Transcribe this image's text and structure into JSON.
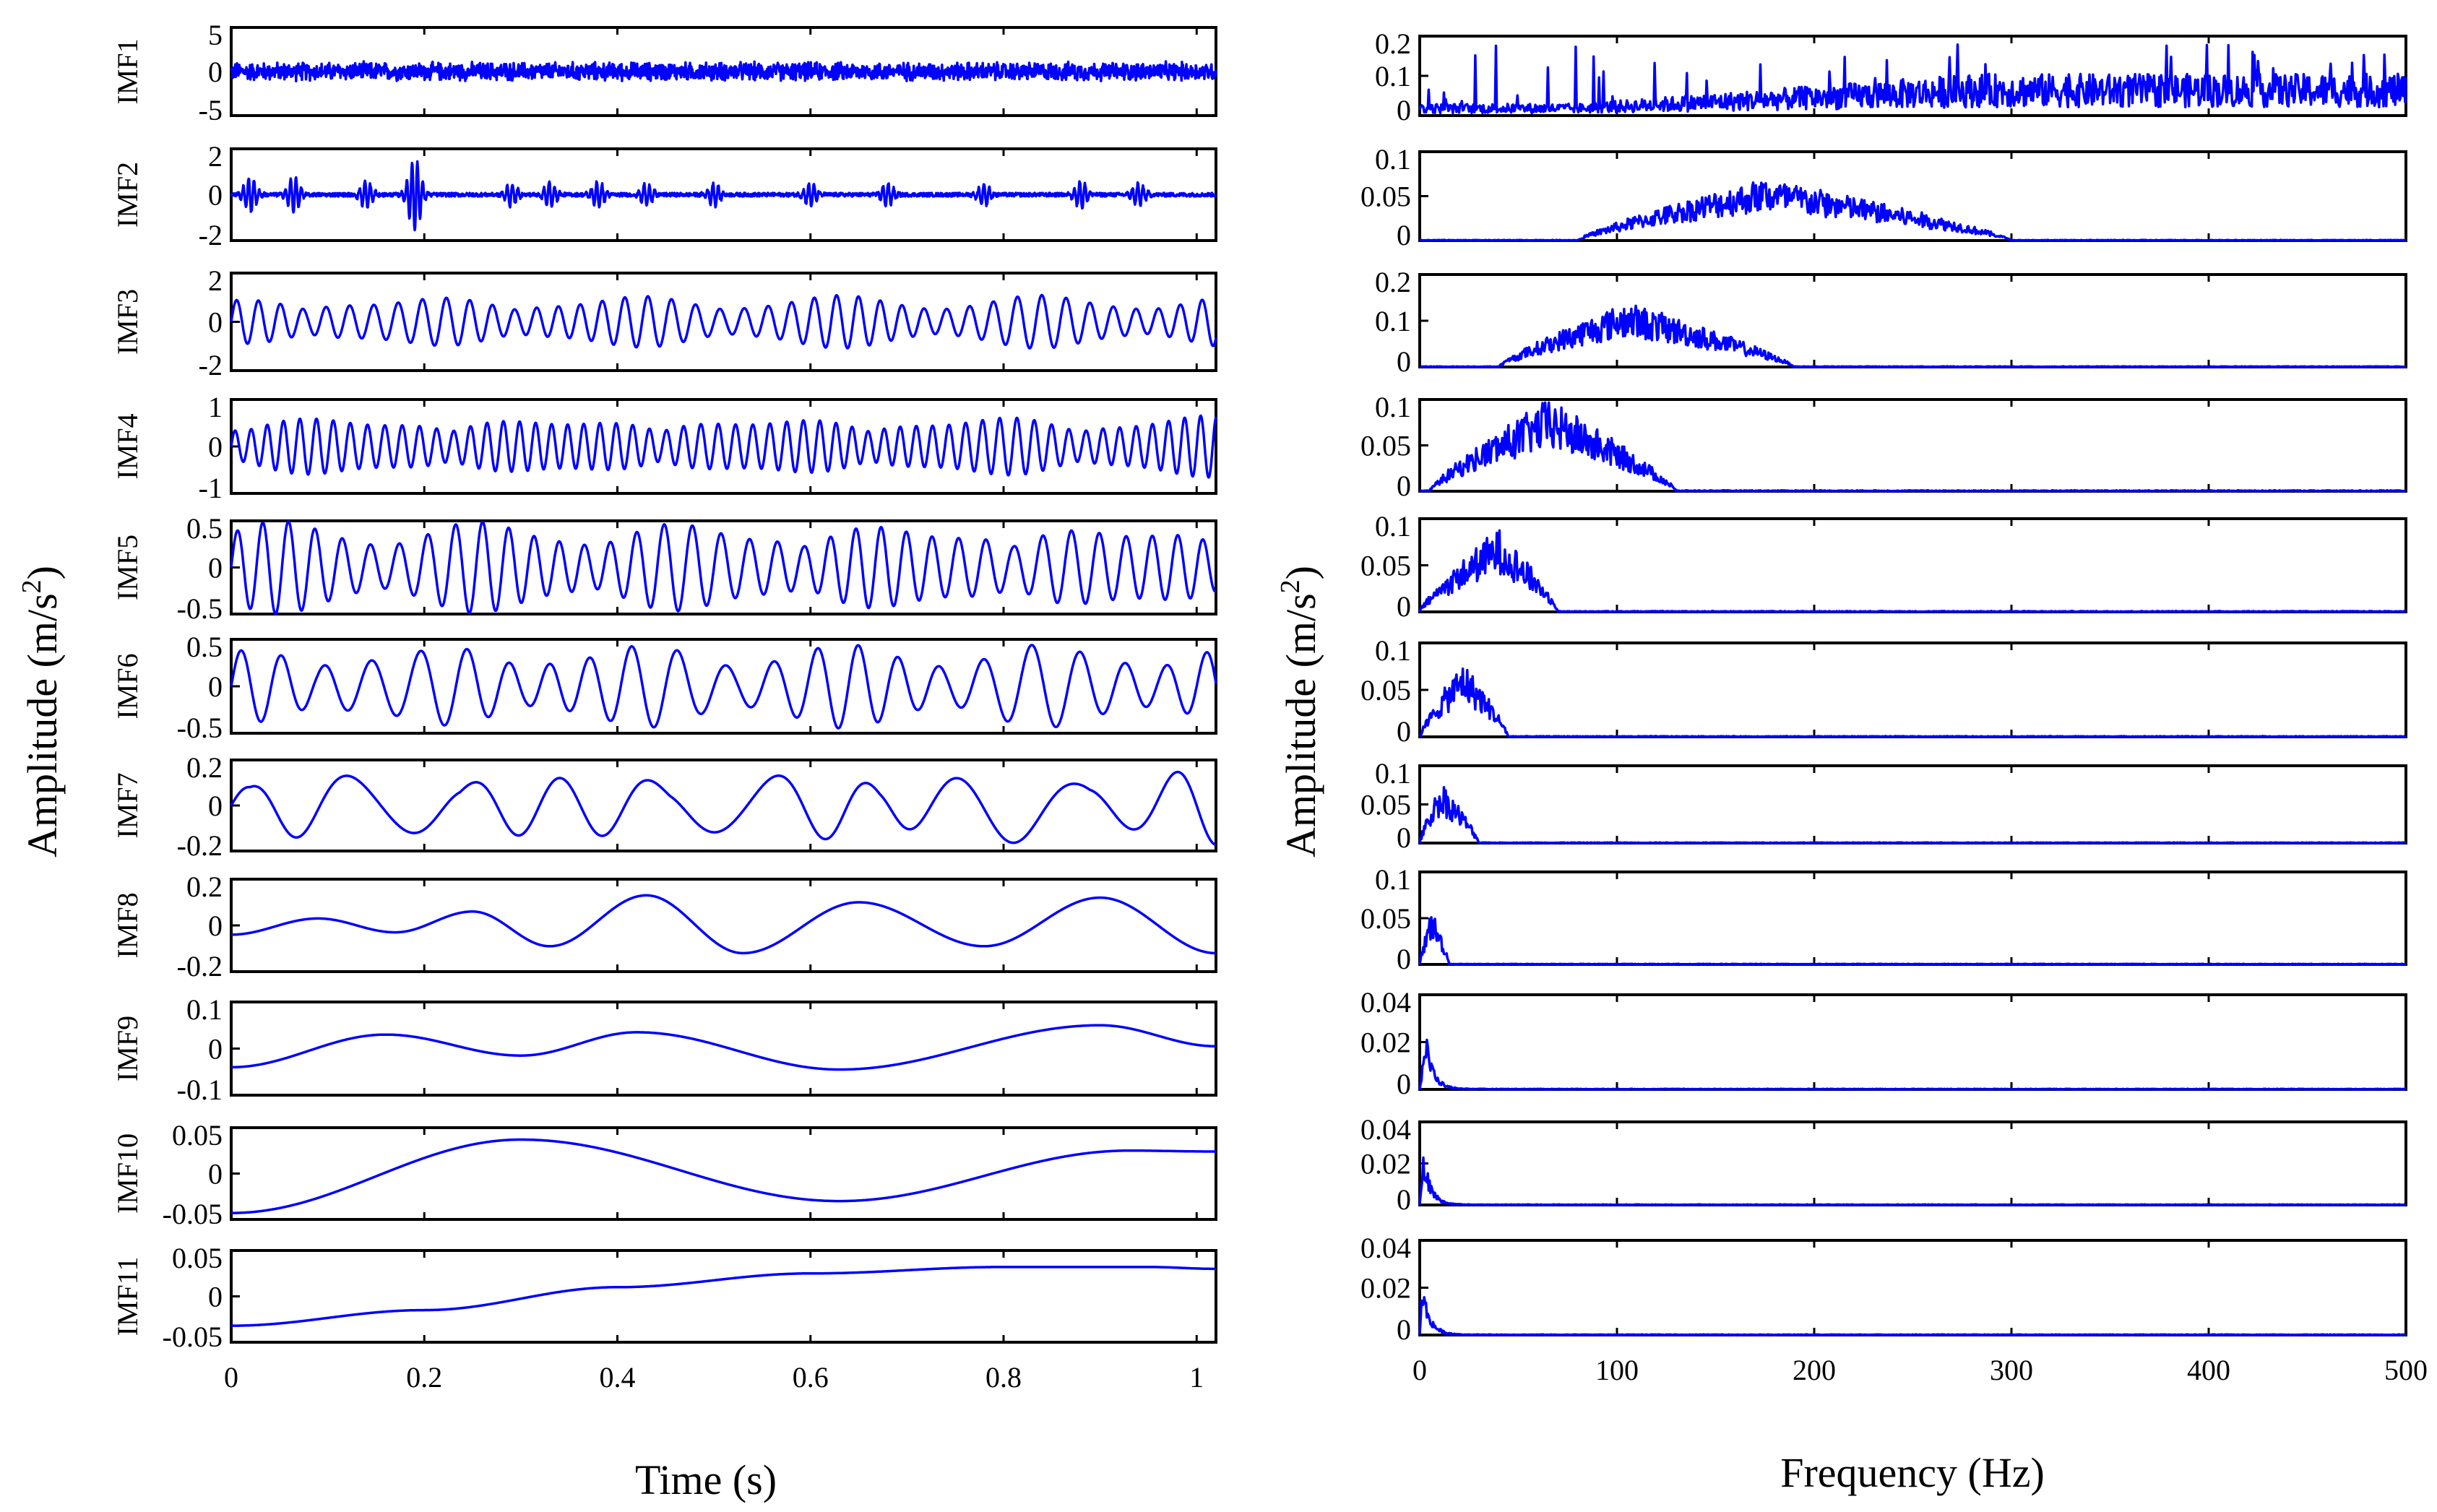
{
  "chart_data": [
    {
      "type": "line",
      "panel": "left",
      "title": "",
      "xlabel": "Time (s)",
      "ylabel": "Amplitude (m/s²)",
      "ylabel_text": "Amplitude (m/s",
      "ylabel_sup": "2",
      "ylabel_close": ")",
      "xlim": [
        0,
        1.02
      ],
      "xticks": [
        0,
        0.2,
        0.4,
        0.6,
        0.8,
        1
      ],
      "xtick_labels": [
        "0",
        "0.2",
        "0.4",
        "0.6",
        "0.8",
        "1"
      ],
      "line_color": "#0000ff",
      "series": [
        {
          "name": "IMF1",
          "ylim": [
            -5,
            5
          ],
          "yticks": [
            -5,
            0,
            5
          ],
          "ytick_labels": [
            "-5",
            "0",
            "5"
          ],
          "amplitude_range": [
            -1.2,
            1.2
          ],
          "shape": "broadband noise, 0–1.02 s"
        },
        {
          "name": "IMF2",
          "ylim": [
            -2,
            2
          ],
          "yticks": [
            -2,
            0,
            2
          ],
          "ytick_labels": [
            "-2",
            "0",
            "2"
          ],
          "amplitude_range": [
            -1.3,
            1.3
          ],
          "shape": "impulsive bursts",
          "burst_times": [
            0.02,
            0.065,
            0.14,
            0.19,
            0.19,
            0.29,
            0.33,
            0.38,
            0.43,
            0.5,
            0.6,
            0.68,
            0.78,
            0.88,
            0.94
          ],
          "burst_peaks": [
            0.8,
            0.8,
            0.6,
            1.2,
            0.6,
            0.5,
            0.6,
            0.6,
            0.5,
            0.5,
            0.5,
            0.5,
            0.5,
            0.6,
            0.5
          ]
        },
        {
          "name": "IMF3",
          "ylim": [
            -2,
            2
          ],
          "yticks": [
            -2,
            0,
            2
          ],
          "ytick_labels": [
            "-2",
            "0",
            "2"
          ],
          "amplitude_range": [
            -1.1,
            1.1
          ],
          "shape": "oscillation ~40 Hz with bursts"
        },
        {
          "name": "IMF4",
          "ylim": [
            -1,
            1
          ],
          "yticks": [
            -1,
            0,
            1
          ],
          "ytick_labels": [
            "-1",
            "0",
            "1"
          ],
          "amplitude_range": [
            -0.7,
            0.7
          ],
          "shape": "oscillation ~60 Hz"
        },
        {
          "name": "IMF5",
          "ylim": [
            -0.5,
            0.5
          ],
          "yticks": [
            -0.5,
            0,
            0.5
          ],
          "ytick_labels": [
            "-0.5",
            "0",
            "0.5"
          ],
          "amplitude_range": [
            -0.5,
            0.5
          ],
          "shape": "oscillation ~35 Hz"
        },
        {
          "name": "IMF6",
          "ylim": [
            -0.5,
            0.5
          ],
          "yticks": [
            -0.5,
            0,
            0.5
          ],
          "ytick_labels": [
            "-0.5",
            "0",
            "0.5"
          ],
          "amplitude_range": [
            -0.45,
            0.42
          ],
          "shape": "oscillation ~22 Hz"
        },
        {
          "name": "IMF7",
          "ylim": [
            -0.2,
            0.2
          ],
          "yticks": [
            -0.2,
            0,
            0.2
          ],
          "ytick_labels": [
            "-0.2",
            "0",
            "0.2"
          ],
          "amplitude_range": [
            -0.18,
            0.18
          ],
          "shape": "oscillation ~10 Hz"
        },
        {
          "name": "IMF8",
          "ylim": [
            -0.2,
            0.2
          ],
          "yticks": [
            -0.2,
            0,
            0.2
          ],
          "ytick_labels": [
            "-0.2",
            "0",
            "0.2"
          ],
          "t": [
            0,
            0.09,
            0.17,
            0.25,
            0.33,
            0.43,
            0.53,
            0.65,
            0.78,
            0.9,
            1.02
          ],
          "v": [
            -0.04,
            0.03,
            -0.03,
            0.06,
            -0.09,
            0.13,
            -0.12,
            0.1,
            -0.09,
            0.12,
            -0.12
          ]
        },
        {
          "name": "IMF9",
          "ylim": [
            -0.1,
            0.1
          ],
          "yticks": [
            -0.1,
            0,
            0.1
          ],
          "ytick_labels": [
            "-0.1",
            "0",
            "0.1"
          ],
          "t": [
            0,
            0.16,
            0.3,
            0.42,
            0.63,
            0.9,
            1.02
          ],
          "v": [
            -0.04,
            0.03,
            -0.015,
            0.035,
            -0.045,
            0.05,
            0.005
          ]
        },
        {
          "name": "IMF10",
          "ylim": [
            -0.05,
            0.05
          ],
          "yticks": [
            -0.05,
            0,
            0.05
          ],
          "ytick_labels": [
            "-0.05",
            "0",
            "0.05"
          ],
          "t": [
            0,
            0.3,
            0.63,
            0.93,
            1.02
          ],
          "v": [
            -0.043,
            0.037,
            -0.03,
            0.025,
            0.024
          ]
        },
        {
          "name": "IMF11",
          "ylim": [
            -0.05,
            0.05
          ],
          "yticks": [
            -0.05,
            0,
            0.05
          ],
          "ytick_labels": [
            "-0.05",
            "0",
            "0.05"
          ],
          "t": [
            0,
            0.2,
            0.4,
            0.6,
            0.8,
            0.95,
            1.02
          ],
          "v": [
            -0.032,
            -0.015,
            0.01,
            0.025,
            0.032,
            0.032,
            0.03
          ]
        }
      ]
    },
    {
      "type": "line",
      "panel": "right",
      "title": "",
      "xlabel": "Frequency (Hz)",
      "ylabel": "Amplitude (m/s²)",
      "ylabel_text": "Amplitude (m/s",
      "ylabel_sup": "2",
      "ylabel_close": ")",
      "xlim": [
        0,
        500
      ],
      "xticks": [
        0,
        100,
        200,
        300,
        400,
        500
      ],
      "xtick_labels": [
        "0",
        "100",
        "200",
        "300",
        "400",
        "500"
      ],
      "line_color": "#0000ff",
      "series": [
        {
          "name": "IMF1 spectrum",
          "ylim": [
            0,
            0.2
          ],
          "yticks": [
            0,
            0.1,
            0.2
          ],
          "ytick_labels": [
            "0",
            "0.1",
            "0.2"
          ],
          "band_hz": [
            0,
            500
          ],
          "peak": 0.18,
          "shape": "rising broadband, 0.02 at 0 Hz to ~0.07 above 250 Hz"
        },
        {
          "name": "IMF2 spectrum",
          "ylim": [
            0,
            0.1
          ],
          "yticks": [
            0,
            0.05,
            0.1
          ],
          "ytick_labels": [
            "0",
            "0.05",
            "0.1"
          ],
          "band_hz": [
            80,
            300
          ],
          "center_hz": 175,
          "peak": 0.07
        },
        {
          "name": "IMF3 spectrum",
          "ylim": [
            0,
            0.2
          ],
          "yticks": [
            0,
            0.1,
            0.2
          ],
          "ytick_labels": [
            "0",
            "0.1",
            "0.2"
          ],
          "band_hz": [
            40,
            190
          ],
          "center_hz": 105,
          "peak": 0.14
        },
        {
          "name": "IMF4 spectrum",
          "ylim": [
            0,
            0.1
          ],
          "yticks": [
            0,
            0.05,
            0.1
          ],
          "ytick_labels": [
            "0",
            "0.05",
            "0.1"
          ],
          "band_hz": [
            5,
            130
          ],
          "center_hz": 65,
          "peak": 0.1
        },
        {
          "name": "IMF5 spectrum",
          "ylim": [
            0,
            0.1
          ],
          "yticks": [
            0,
            0.05,
            0.1
          ],
          "ytick_labels": [
            "0",
            "0.05",
            "0.1"
          ],
          "band_hz": [
            0,
            70
          ],
          "center_hz": 40,
          "peak": 0.09
        },
        {
          "name": "IMF6 spectrum",
          "ylim": [
            0,
            0.1
          ],
          "yticks": [
            0,
            0.05,
            0.1
          ],
          "ytick_labels": [
            "0",
            "0.05",
            "0.1"
          ],
          "band_hz": [
            0,
            45
          ],
          "center_hz": 22,
          "peak": 0.08
        },
        {
          "name": "IMF7 spectrum",
          "ylim": [
            0,
            0.1
          ],
          "yticks": [
            0,
            0.05,
            0.1
          ],
          "ytick_labels": [
            "0",
            "0.05",
            "0.1"
          ],
          "band_hz": [
            0,
            30
          ],
          "center_hz": 11,
          "peak": 0.08
        },
        {
          "name": "IMF8 spectrum",
          "ylim": [
            0,
            0.1
          ],
          "yticks": [
            0,
            0.05,
            0.1
          ],
          "ytick_labels": [
            "0",
            "0.05",
            "0.1"
          ],
          "band_hz": [
            0,
            15
          ],
          "center_hz": 6,
          "peak": 0.06
        },
        {
          "name": "IMF9 spectrum",
          "ylim": [
            0,
            0.04
          ],
          "yticks": [
            0,
            0.02,
            0.04
          ],
          "ytick_labels": [
            "0",
            "0.02",
            "0.04"
          ],
          "band_hz": [
            0,
            12
          ],
          "center_hz": 3,
          "peak": 0.025
        },
        {
          "name": "IMF10 spectrum",
          "ylim": [
            0,
            0.04
          ],
          "yticks": [
            0,
            0.02,
            0.04
          ],
          "ytick_labels": [
            "0",
            "0.02",
            "0.04"
          ],
          "band_hz": [
            0,
            10
          ],
          "center_hz": 2,
          "peak": 0.026
        },
        {
          "name": "IMF11 spectrum",
          "ylim": [
            0,
            0.04
          ],
          "yticks": [
            0,
            0.02,
            0.04
          ],
          "ytick_labels": [
            "0",
            "0.02",
            "0.04"
          ],
          "band_hz": [
            0,
            8
          ],
          "center_hz": 1,
          "peak": 0.025
        }
      ]
    }
  ]
}
